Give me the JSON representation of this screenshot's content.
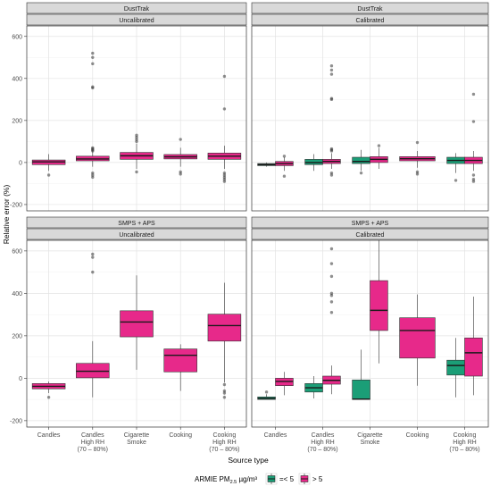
{
  "chart_data": {
    "type": "box",
    "xlabel": "Source type",
    "ylabel": "Relative error (%)",
    "ylim": [
      -230,
      650
    ],
    "yticks": [
      -200,
      0,
      200,
      400,
      600
    ],
    "categories": [
      "Candles",
      "Candles\nHigh RH\n(70 – 80%)",
      "Cigarette\nSmoke",
      "Cooking",
      "Cooking\nHigh RH\n(70 – 80%)"
    ],
    "legend": {
      "title": "ARMIE PM",
      "title_sub": "2.5",
      "title_unit": " µg/m³",
      "entries": [
        {
          "key": "low",
          "label": "=< 5",
          "color": "#1b9e77"
        },
        {
          "key": "high",
          "label": "> 5",
          "color": "#e7298a"
        }
      ]
    },
    "panels": [
      {
        "row_label": "DustTrak",
        "col_label": "Uncalibrated",
        "boxes": [
          {
            "cat": 0,
            "group": "high",
            "q1": -10,
            "median": 3,
            "q3": 12,
            "lo": -40,
            "hi": 40,
            "outliers": [
              -60
            ]
          },
          {
            "cat": 1,
            "group": "high",
            "q1": 8,
            "median": 17,
            "q3": 30,
            "lo": -20,
            "hi": 60,
            "outliers": [
              -70,
              -60,
              -50,
              55,
              60,
              65,
              70,
              355,
              360,
              470,
              500,
              520
            ]
          },
          {
            "cat": 2,
            "group": "high",
            "q1": 15,
            "median": 32,
            "q3": 48,
            "lo": -30,
            "hi": 90,
            "outliers": [
              -45,
              100,
              110,
              120,
              130
            ]
          },
          {
            "cat": 3,
            "group": "high",
            "q1": 17,
            "median": 27,
            "q3": 38,
            "lo": -20,
            "hi": 70,
            "outliers": [
              -55,
              -45,
              110
            ]
          },
          {
            "cat": 4,
            "group": "high",
            "q1": 15,
            "median": 30,
            "q3": 45,
            "lo": -30,
            "hi": 80,
            "outliers": [
              -90,
              -80,
              -70,
              -60,
              -50,
              255,
              410
            ]
          }
        ]
      },
      {
        "row_label": "DustTrak",
        "col_label": "Calibrated",
        "boxes": [
          {
            "cat": 0,
            "group": "low",
            "q1": -15,
            "median": -10,
            "q3": -5,
            "lo": -20,
            "hi": 0,
            "outliers": []
          },
          {
            "cat": 0,
            "group": "high",
            "q1": -15,
            "median": -5,
            "q3": 5,
            "lo": -40,
            "hi": 25,
            "outliers": [
              -65,
              30
            ]
          },
          {
            "cat": 1,
            "group": "low",
            "q1": -10,
            "median": 0,
            "q3": 15,
            "lo": -40,
            "hi": 40,
            "outliers": []
          },
          {
            "cat": 1,
            "group": "high",
            "q1": -5,
            "median": 5,
            "q3": 15,
            "lo": -30,
            "hi": 45,
            "outliers": [
              -60,
              -50,
              55,
              60,
              65,
              300,
              305,
              420,
              440,
              460
            ]
          },
          {
            "cat": 2,
            "group": "low",
            "q1": -5,
            "median": 5,
            "q3": 25,
            "lo": -40,
            "hi": 60,
            "outliers": [
              -50
            ]
          },
          {
            "cat": 2,
            "group": "high",
            "q1": 0,
            "median": 15,
            "q3": 28,
            "lo": -30,
            "hi": 70,
            "outliers": [
              80
            ]
          },
          {
            "cat": 3,
            "group": "high",
            "q1": 8,
            "median": 18,
            "q3": 28,
            "lo": -25,
            "hi": 55,
            "outliers": [
              -55,
              -45,
              95
            ]
          },
          {
            "cat": 4,
            "group": "low",
            "q1": -5,
            "median": 10,
            "q3": 25,
            "lo": -50,
            "hi": 45,
            "outliers": [
              -85
            ]
          },
          {
            "cat": 4,
            "group": "high",
            "q1": -5,
            "median": 10,
            "q3": 25,
            "lo": -40,
            "hi": 55,
            "outliers": [
              -90,
              -80,
              -60,
              195,
              325
            ]
          }
        ]
      },
      {
        "row_label": "SMPS + APS",
        "col_label": "Uncalibrated",
        "boxes": [
          {
            "cat": 0,
            "group": "high",
            "q1": -50,
            "median": -38,
            "q3": -25,
            "lo": -70,
            "hi": -15,
            "outliers": [
              -90
            ]
          },
          {
            "cat": 1,
            "group": "high",
            "q1": 2,
            "median": 33,
            "q3": 70,
            "lo": -90,
            "hi": 175,
            "outliers": [
              500,
              570,
              585
            ]
          },
          {
            "cat": 2,
            "group": "high",
            "q1": 195,
            "median": 265,
            "q3": 318,
            "lo": 40,
            "hi": 485,
            "outliers": []
          },
          {
            "cat": 3,
            "group": "high",
            "q1": 30,
            "median": 108,
            "q3": 138,
            "lo": -60,
            "hi": 160,
            "outliers": []
          },
          {
            "cat": 4,
            "group": "high",
            "q1": 175,
            "median": 248,
            "q3": 302,
            "lo": -20,
            "hi": 450,
            "outliers": [
              -90,
              -70,
              -60,
              -30
            ]
          }
        ]
      },
      {
        "row_label": "SMPS + APS",
        "col_label": "Calibrated",
        "boxes": [
          {
            "cat": 0,
            "group": "low",
            "q1": -100,
            "median": -95,
            "q3": -88,
            "lo": -100,
            "hi": -75,
            "outliers": [
              -65
            ]
          },
          {
            "cat": 0,
            "group": "high",
            "q1": -35,
            "median": -15,
            "q3": 0,
            "lo": -80,
            "hi": 30,
            "outliers": []
          },
          {
            "cat": 1,
            "group": "low",
            "q1": -65,
            "median": -45,
            "q3": -25,
            "lo": -95,
            "hi": 10,
            "outliers": []
          },
          {
            "cat": 1,
            "group": "high",
            "q1": -28,
            "median": -10,
            "q3": 10,
            "lo": -75,
            "hi": 60,
            "outliers": [
              310,
              360,
              390,
              400,
              480,
              540,
              610
            ]
          },
          {
            "cat": 2,
            "group": "low",
            "q1": -100,
            "median": -98,
            "q3": -8,
            "lo": -100,
            "hi": 135,
            "outliers": []
          },
          {
            "cat": 2,
            "group": "high",
            "q1": 225,
            "median": 320,
            "q3": 460,
            "lo": 70,
            "hi": 650,
            "outliers": []
          },
          {
            "cat": 3,
            "group": "high",
            "q1": 95,
            "median": 225,
            "q3": 285,
            "lo": -35,
            "hi": 395,
            "outliers": []
          },
          {
            "cat": 4,
            "group": "low",
            "q1": 15,
            "median": 60,
            "q3": 85,
            "lo": -90,
            "hi": 190,
            "outliers": []
          },
          {
            "cat": 4,
            "group": "high",
            "q1": 10,
            "median": 120,
            "q3": 190,
            "lo": -80,
            "hi": 385,
            "outliers": []
          }
        ]
      }
    ]
  }
}
